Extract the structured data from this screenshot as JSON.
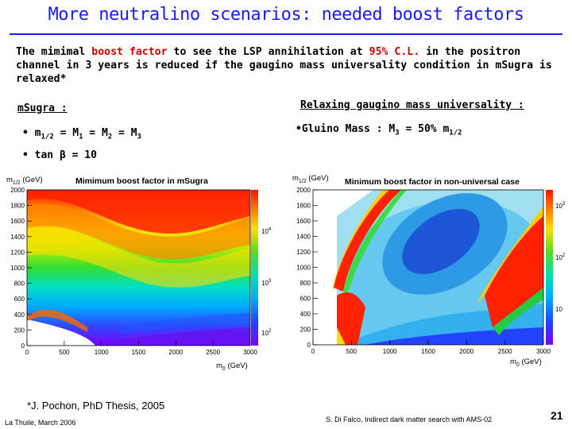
{
  "title": "More neutralino scenarios: needed boost factors",
  "intro": {
    "part1": "The mimimal ",
    "highlight1": "boost factor",
    "part2": " to see the LSP annihilation at ",
    "highlight2": "95% C.L.",
    "part3": " in the positron channel in 3 years is reduced if the gaugino mass universality condition in mSugra is relaxed*"
  },
  "left_section": {
    "heading": "mSugra :",
    "bullet1": "• m1/2 = M1 = M2 = M3",
    "bullet1_parts": [
      "• m",
      "1/2",
      " = M",
      "1",
      " = M",
      "2",
      " = M",
      "3"
    ],
    "bullet2": "• tan β = 10"
  },
  "right_section": {
    "heading": "Relaxing gaugino mass universality :",
    "bullet_parts": [
      "•Gluino Mass : M",
      "3",
      " = 50% m",
      "1/2"
    ]
  },
  "chart_data": [
    {
      "type": "heatmap",
      "title": "Mimimum boost factor in mSugra",
      "xlabel": "m0 (GeV)",
      "ylabel": "m1/2 (GeV)",
      "xlim": [
        0,
        3000
      ],
      "ylim": [
        0,
        2000
      ],
      "x_ticks": [
        "0",
        "500",
        "1000",
        "1500",
        "2000",
        "2500",
        "3000"
      ],
      "y_ticks": [
        "0",
        "200",
        "400",
        "600",
        "800",
        "1000",
        "1200",
        "1400",
        "1600",
        "1800",
        "2000"
      ],
      "colorbar_scale": "log",
      "colorbar_labels": [
        "10^2",
        "10^3",
        "10^4"
      ]
    },
    {
      "type": "heatmap",
      "title": "Minimum boost factor in non-universal case",
      "xlabel": "m0 (GeV)",
      "ylabel": "m1/2 (GeV)",
      "xlim": [
        0,
        3000
      ],
      "ylim": [
        0,
        2000
      ],
      "x_ticks": [
        "0",
        "500",
        "1000",
        "1500",
        "2000",
        "2500",
        "3000"
      ],
      "y_ticks": [
        "0",
        "200",
        "400",
        "600",
        "800",
        "1000",
        "1200",
        "1400",
        "1600",
        "1800",
        "2000"
      ],
      "colorbar_scale": "log",
      "colorbar_labels": [
        "10",
        "10^2",
        "10^3"
      ]
    }
  ],
  "plot_text": {
    "left_ylabel_main": "m",
    "left_ylabel_sub": "1/2",
    "left_ylabel_unit": " (GeV)",
    "left_xlabel_main": "m",
    "left_xlabel_sub": "0",
    "left_xlabel_unit": " (GeV)",
    "right_ylabel_main": "m",
    "right_ylabel_sub": "1/2",
    "right_ylabel_unit": " (GeV)",
    "right_xlabel_main": "m",
    "right_xlabel_sub": "0",
    "right_xlabel_unit": " (GeV)",
    "left_cb": [
      {
        "base": "10",
        "exp": "2"
      },
      {
        "base": "10",
        "exp": "3"
      },
      {
        "base": "10",
        "exp": "4"
      }
    ],
    "right_cb": [
      {
        "base": "10",
        "exp": ""
      },
      {
        "base": "10",
        "exp": "2"
      },
      {
        "base": "10",
        "exp": "3"
      }
    ]
  },
  "footer": {
    "footnote": "*J. Pochon, PhD Thesis, 2005",
    "venue": "La Thuile, March 2006",
    "author": "S. Di Falco, Indirect dark matter search with AMS-02",
    "page": "21"
  },
  "colors": {
    "title": "#1a1aff",
    "highlight": "#cc0000"
  }
}
